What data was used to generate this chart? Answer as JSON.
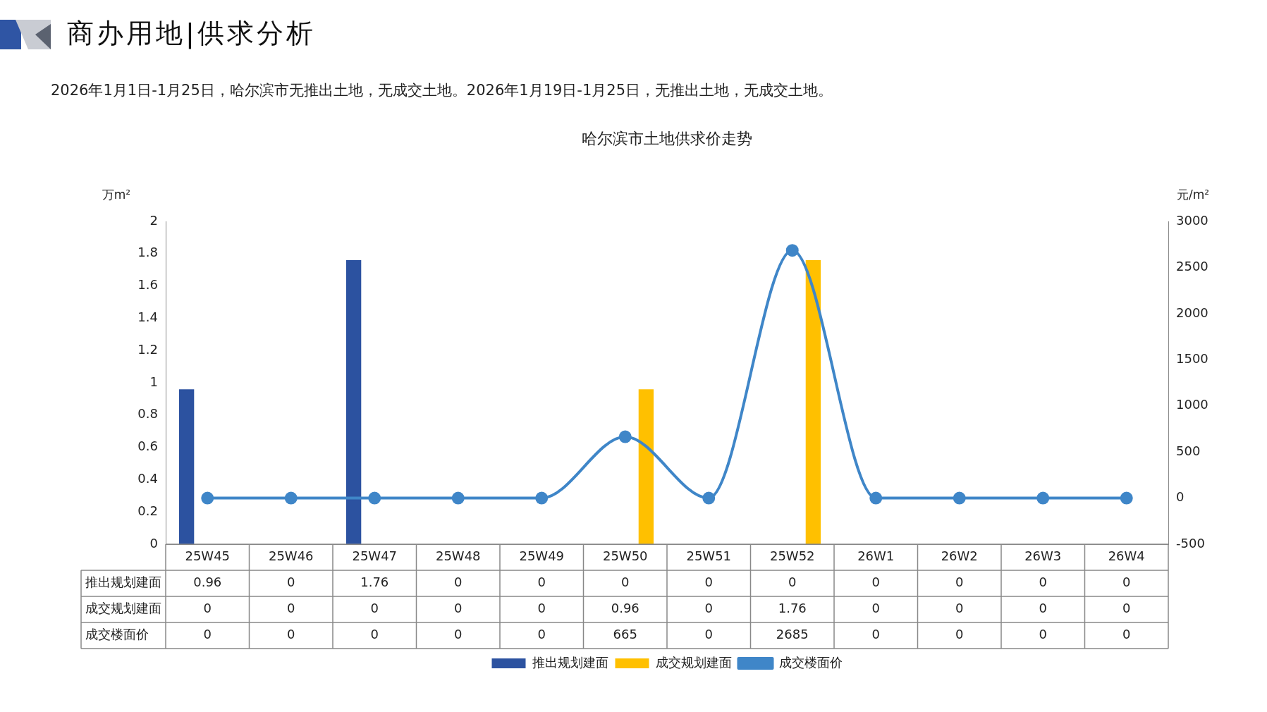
{
  "chart_data": {
    "type": "bar",
    "title": "商办用地|供求分析",
    "subtitle": "2026年1月1日-1月25日，哈尔滨市无推出土地，无成交土地。2026年1月19日-1月25日，无推出土地，无成交土地。",
    "annotations": [
      "哈尔滨市土地供求价走势"
    ],
    "categories": [
      "25W45",
      "25W46",
      "25W47",
      "25W48",
      "25W49",
      "25W50",
      "25W51",
      "25W52",
      "26W1",
      "26W2",
      "26W3",
      "26W4"
    ],
    "series": [
      {
        "name": "推出规划建面",
        "color": "#2c52a0",
        "values": [
          0.96,
          0,
          1.76,
          0,
          0,
          0,
          0,
          0,
          0,
          0,
          0,
          0
        ]
      },
      {
        "name": "成交规划建面",
        "color": "#ffc000",
        "values": [
          0,
          0,
          0,
          0,
          0,
          0.96,
          0,
          1.76,
          0,
          0,
          0,
          0
        ]
      },
      {
        "name": "成交楼面价",
        "type": "line",
        "axis": "y2",
        "color": "#3f86c8",
        "values": [
          0,
          0,
          0,
          0,
          0,
          665,
          0,
          2685,
          0,
          0,
          0,
          0
        ]
      }
    ],
    "ylabel": "万m²",
    "y2label": "元/m²",
    "ylim": [
      0,
      2
    ],
    "yticks": [
      0,
      0.2,
      0.4,
      0.6,
      0.8,
      1,
      1.2,
      1.4,
      1.6,
      1.8,
      2
    ],
    "y2lim": [
      -500,
      3000
    ],
    "y2ticks": [
      -500,
      0,
      500,
      1000,
      1500,
      2000,
      2500,
      3000
    ],
    "data_labels": true,
    "legend": "bottom",
    "marker": "circle",
    "grid": false
  }
}
